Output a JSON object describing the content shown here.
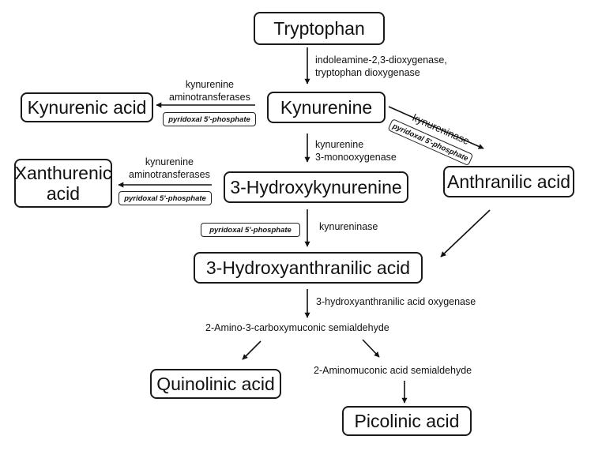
{
  "compounds": {
    "tryptophan": "Tryptophan",
    "kynurenine": "Kynurenine",
    "kynurenic_acid": "Kynurenic acid",
    "anthranilic_acid": "Anthranilic acid",
    "hydroxykynurenine": "3-Hydroxykynurenine",
    "xanthurenic_acid_line1": "Xanthurenic",
    "xanthurenic_acid_line2": "acid",
    "hydroxyanthranilic_acid": "3-Hydroxyanthranilic acid",
    "amino_carboxymuconic": "2-Amino-3-carboxymuconic semialdehyde",
    "aminomuconic": "2-Aminomuconic acid semialdehyde",
    "quinolinic_acid": "Quinolinic acid",
    "picolinic_acid": "Picolinic acid"
  },
  "enzymes": {
    "ido_line1": "indoleamine-2,3-dioxygenase,",
    "ido_line2": "tryptophan dioxygenase",
    "kat1_line1": "kynurenine",
    "kat1_line2": "aminotransferases",
    "kynureninase_diag": "kynureninase",
    "kmo_line1": "kynurenine",
    "kmo_line2": "3-monooxygenase",
    "kat2_line1": "kynurenine",
    "kat2_line2": "aminotransferases",
    "kynureninase": "kynureninase",
    "haao": "3-hydroxyanthranilic acid oxygenase"
  },
  "cofactor": "pyridoxal 5'-phosphate"
}
